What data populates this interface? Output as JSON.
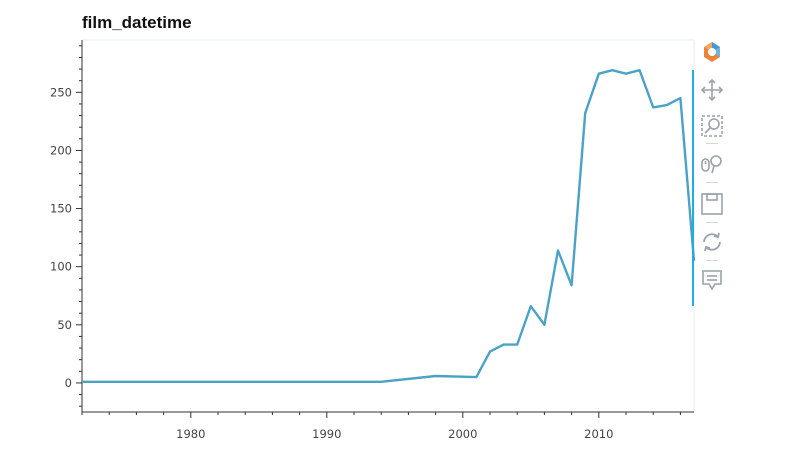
{
  "chart_data": {
    "type": "line",
    "title": "film_datetime",
    "xlabel": "",
    "ylabel": "",
    "xlim": [
      1972,
      2017
    ],
    "ylim": [
      -25,
      295
    ],
    "xticks": [
      1980,
      1990,
      2000,
      2010
    ],
    "yticks": [
      0,
      50,
      100,
      150,
      200,
      250
    ],
    "xtick_labels": [
      "1980",
      "1990",
      "2000",
      "2010"
    ],
    "ytick_labels": [
      "0",
      "50",
      "100",
      "150",
      "200",
      "250"
    ],
    "grid": false,
    "series": [
      {
        "color": "#4aa3c7",
        "x": [
          1972,
          1994,
          1998,
          2001,
          2002,
          2003,
          2004,
          2005,
          2006,
          2007,
          2008,
          2009,
          2010,
          2011,
          2012,
          2013,
          2014,
          2015,
          2016,
          2017
        ],
        "y": [
          1,
          1,
          6,
          5,
          27,
          33,
          33,
          66,
          50,
          114,
          84,
          232,
          266,
          269,
          266,
          269,
          237,
          239,
          245,
          105
        ]
      }
    ]
  },
  "toolbar": {
    "tools": [
      {
        "name": "bokeh-logo-icon",
        "active": false
      },
      {
        "name": "pan-tool-icon",
        "active": true
      },
      {
        "name": "box-zoom-tool-icon",
        "active": true
      },
      {
        "name": "wheel-zoom-tool-icon",
        "active": true
      },
      {
        "name": "save-tool-icon",
        "active": false
      },
      {
        "name": "reset-tool-icon",
        "active": false
      },
      {
        "name": "hover-tool-icon",
        "active": false
      }
    ],
    "accent_color": "#26aae1"
  }
}
